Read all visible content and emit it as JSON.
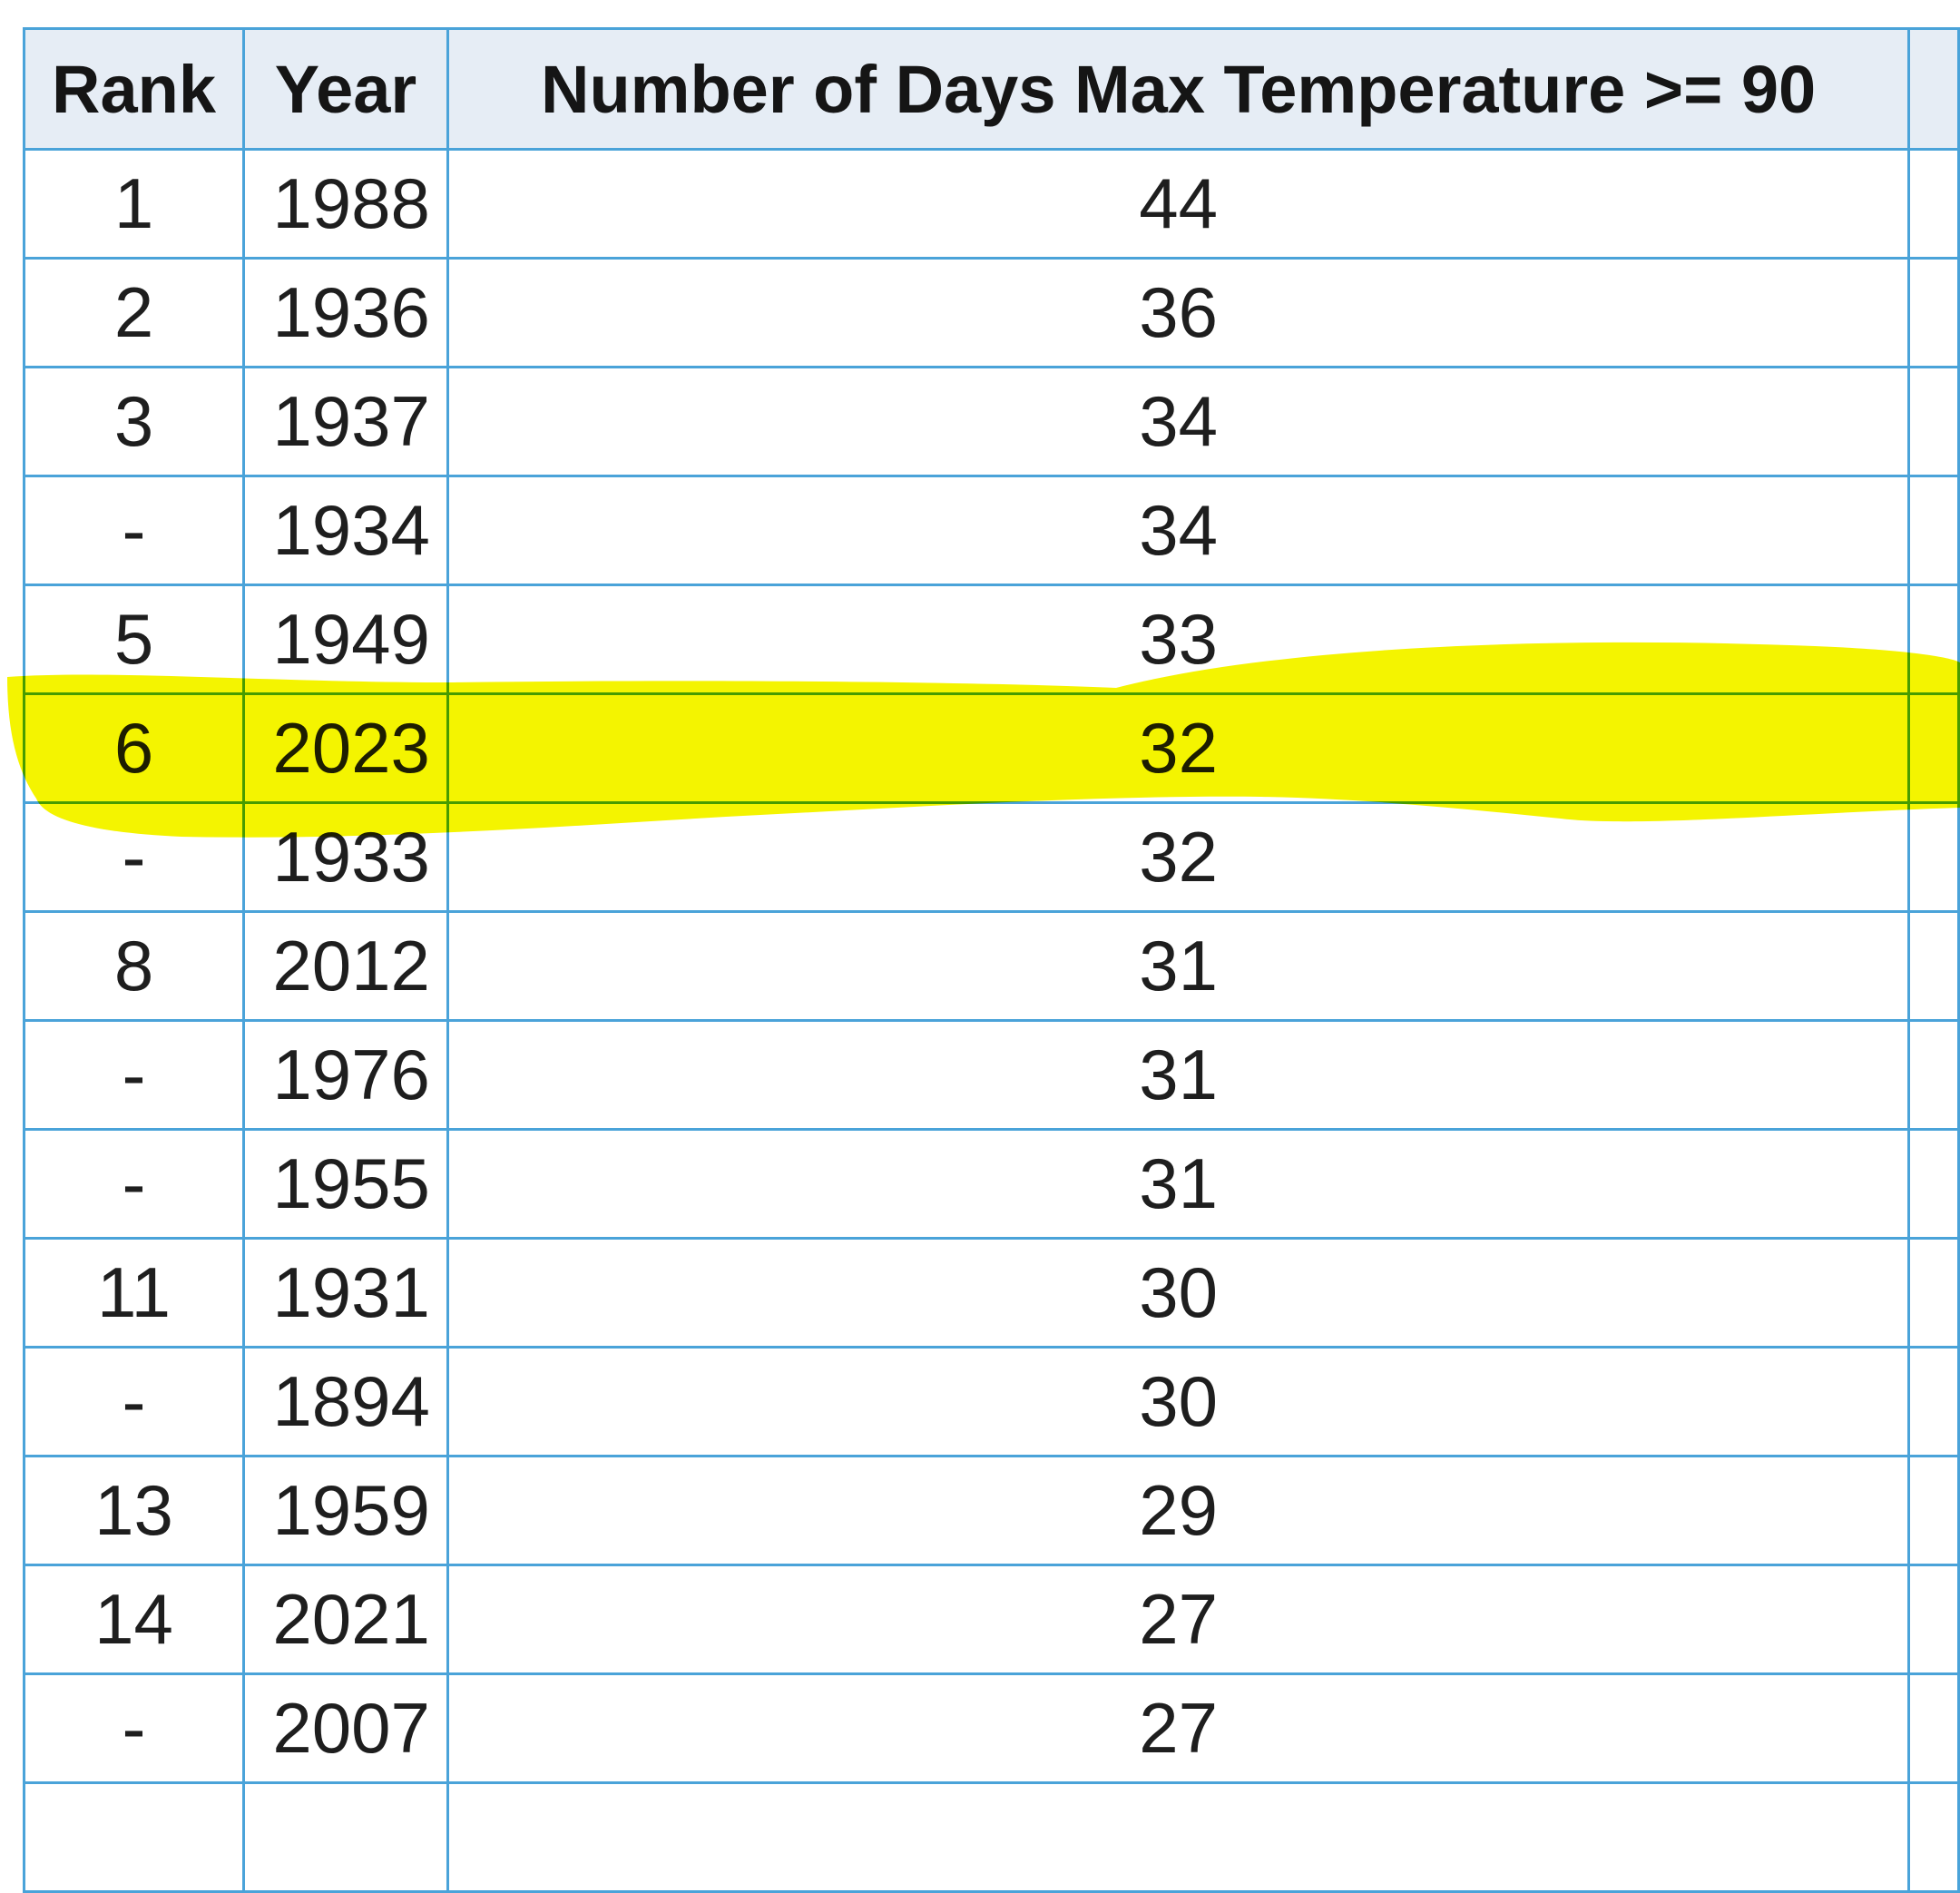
{
  "table": {
    "header": [
      "Rank",
      "Year",
      "Number of Days Max Temperature >= 90"
    ],
    "rows": [
      [
        "1",
        "1988",
        "44"
      ],
      [
        "2",
        "1936",
        "36"
      ],
      [
        "3",
        "1937",
        "34"
      ],
      [
        "-",
        "1934",
        "34"
      ],
      [
        "5",
        "1949",
        "33"
      ],
      [
        "6",
        "2023",
        "32"
      ],
      [
        "-",
        "1933",
        "32"
      ],
      [
        "8",
        "2012",
        "31"
      ],
      [
        "-",
        "1976",
        "31"
      ],
      [
        "-",
        "1955",
        "31"
      ],
      [
        "11",
        "1931",
        "30"
      ],
      [
        "-",
        "1894",
        "30"
      ],
      [
        "13",
        "1959",
        "29"
      ],
      [
        "14",
        "2021",
        "27"
      ],
      [
        "-",
        "2007",
        "27"
      ]
    ]
  }
}
